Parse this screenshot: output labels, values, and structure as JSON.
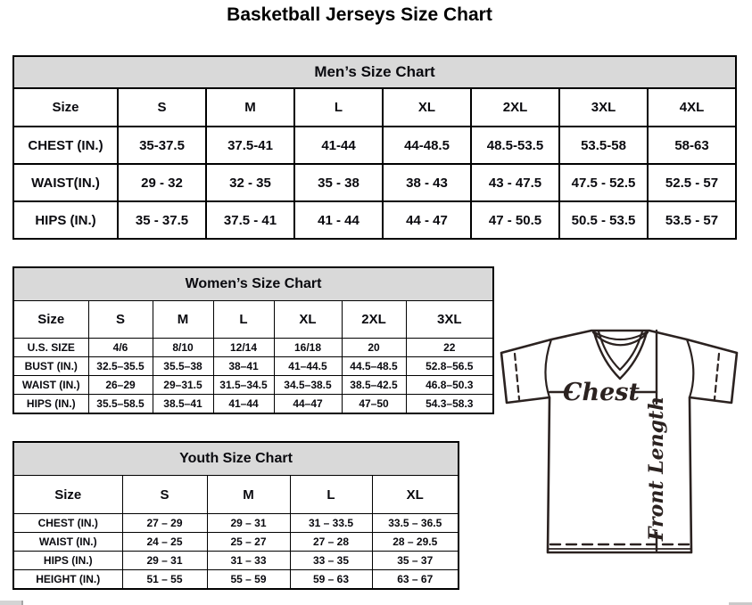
{
  "page": {
    "title": "Basketball Jerseys Size Chart"
  },
  "tables": [
    {
      "id": "mens",
      "title": "Men’s Size Chart",
      "columns": [
        "Size",
        "S",
        "M",
        "L",
        "XL",
        "2XL",
        "3XL",
        "4XL"
      ],
      "rows": [
        {
          "label": "CHEST (IN.)",
          "values": [
            "35-37.5",
            "37.5-41",
            "41-44",
            "44-48.5",
            "48.5-53.5",
            "53.5-58",
            "58-63"
          ]
        },
        {
          "label": "WAIST(IN.)",
          "values": [
            "29 - 32",
            "32 - 35",
            "35 - 38",
            "38 - 43",
            "43 - 47.5",
            "47.5 - 52.5",
            "52.5 - 57"
          ]
        },
        {
          "label": "HIPS (IN.)",
          "values": [
            "35 - 37.5",
            "37.5 - 41",
            "41 - 44",
            "44 - 47",
            "47 - 50.5",
            "50.5 - 53.5",
            "53.5 - 57"
          ]
        }
      ]
    },
    {
      "id": "womens",
      "title": "Women’s Size Chart",
      "columns": [
        "Size",
        "S",
        "M",
        "L",
        "XL",
        "2XL",
        "3XL"
      ],
      "rows": [
        {
          "label": "U.S. SIZE",
          "values": [
            "4/6",
            "8/10",
            "12/14",
            "16/18",
            "20",
            "22"
          ]
        },
        {
          "label": "BUST (IN.)",
          "values": [
            "32.5–35.5",
            "35.5–38",
            "38–41",
            "41–44.5",
            "44.5–48.5",
            "52.8–56.5"
          ]
        },
        {
          "label": "WAIST (IN.)",
          "values": [
            "26–29",
            "29–31.5",
            "31.5–34.5",
            "34.5–38.5",
            "38.5–42.5",
            "46.8–50.3"
          ]
        },
        {
          "label": "HIPS (IN.)",
          "values": [
            "35.5–58.5",
            "38.5–41",
            "41–44",
            "44–47",
            "47–50",
            "54.3–58.3"
          ]
        }
      ]
    },
    {
      "id": "youth",
      "title": "Youth Size Chart",
      "columns": [
        "Size",
        "S",
        "M",
        "L",
        "XL"
      ],
      "rows": [
        {
          "label": "CHEST (IN.)",
          "values": [
            "27 – 29",
            "29 – 31",
            "31 – 33.5",
            "33.5 – 36.5"
          ]
        },
        {
          "label": "WAIST (IN.)",
          "values": [
            "24 – 25",
            "25 – 27",
            "27 – 28",
            "28 – 29.5"
          ]
        },
        {
          "label": "HIPS (IN.)",
          "values": [
            "29 – 31",
            "31 – 33",
            "33 – 35",
            "35 – 37"
          ]
        },
        {
          "label": "HEIGHT (IN.)",
          "values": [
            "51 – 55",
            "55 – 59",
            "59 – 63",
            "63 – 67"
          ]
        }
      ]
    }
  ],
  "diagram": {
    "chest_label": "Chest",
    "front_length_label": "Front Length"
  },
  "colors": {
    "table_header_bg": "#d9d9d9",
    "table_border": "#000000",
    "diagram_line": "#2b2220"
  }
}
